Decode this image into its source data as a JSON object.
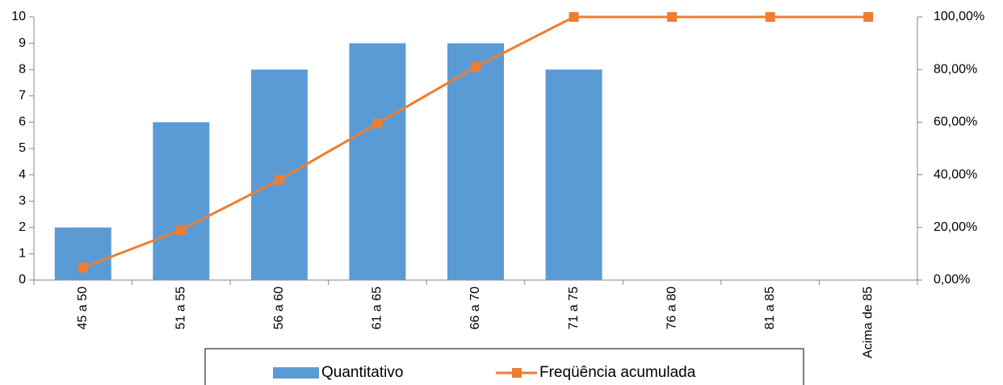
{
  "chart_data": {
    "type": "combo",
    "categories": [
      "45 a 50",
      "51 a 55",
      "56 a 60",
      "61 a 65",
      "66 a 70",
      "71 a 75",
      "76 a 80",
      "81 a 85",
      "Acima de 85"
    ],
    "series": [
      {
        "name": "Quantitativo",
        "type": "bar",
        "color": "#5b9bd5",
        "values": [
          2,
          6,
          8,
          9,
          9,
          8,
          0,
          0,
          0
        ]
      },
      {
        "name": "Freqüência acumulada",
        "type": "line",
        "axis": "y2",
        "color": "#ed7d31",
        "values": [
          4.76,
          19.05,
          38.1,
          59.52,
          80.95,
          100,
          100,
          100,
          100
        ]
      }
    ],
    "ylim": [
      0,
      10
    ],
    "yticks": [
      0,
      1,
      2,
      3,
      4,
      5,
      6,
      7,
      8,
      9,
      10
    ],
    "y2lim": [
      0,
      100
    ],
    "y2ticks": [
      {
        "value": 0,
        "label": "0,00%"
      },
      {
        "value": 20,
        "label": "20,00%"
      },
      {
        "value": 40,
        "label": "40,00%"
      },
      {
        "value": 60,
        "label": "60,00%"
      },
      {
        "value": 80,
        "label": "80,00%"
      },
      {
        "value": 100,
        "label": "100,00%"
      }
    ],
    "grid": false,
    "legend": "bottom"
  }
}
